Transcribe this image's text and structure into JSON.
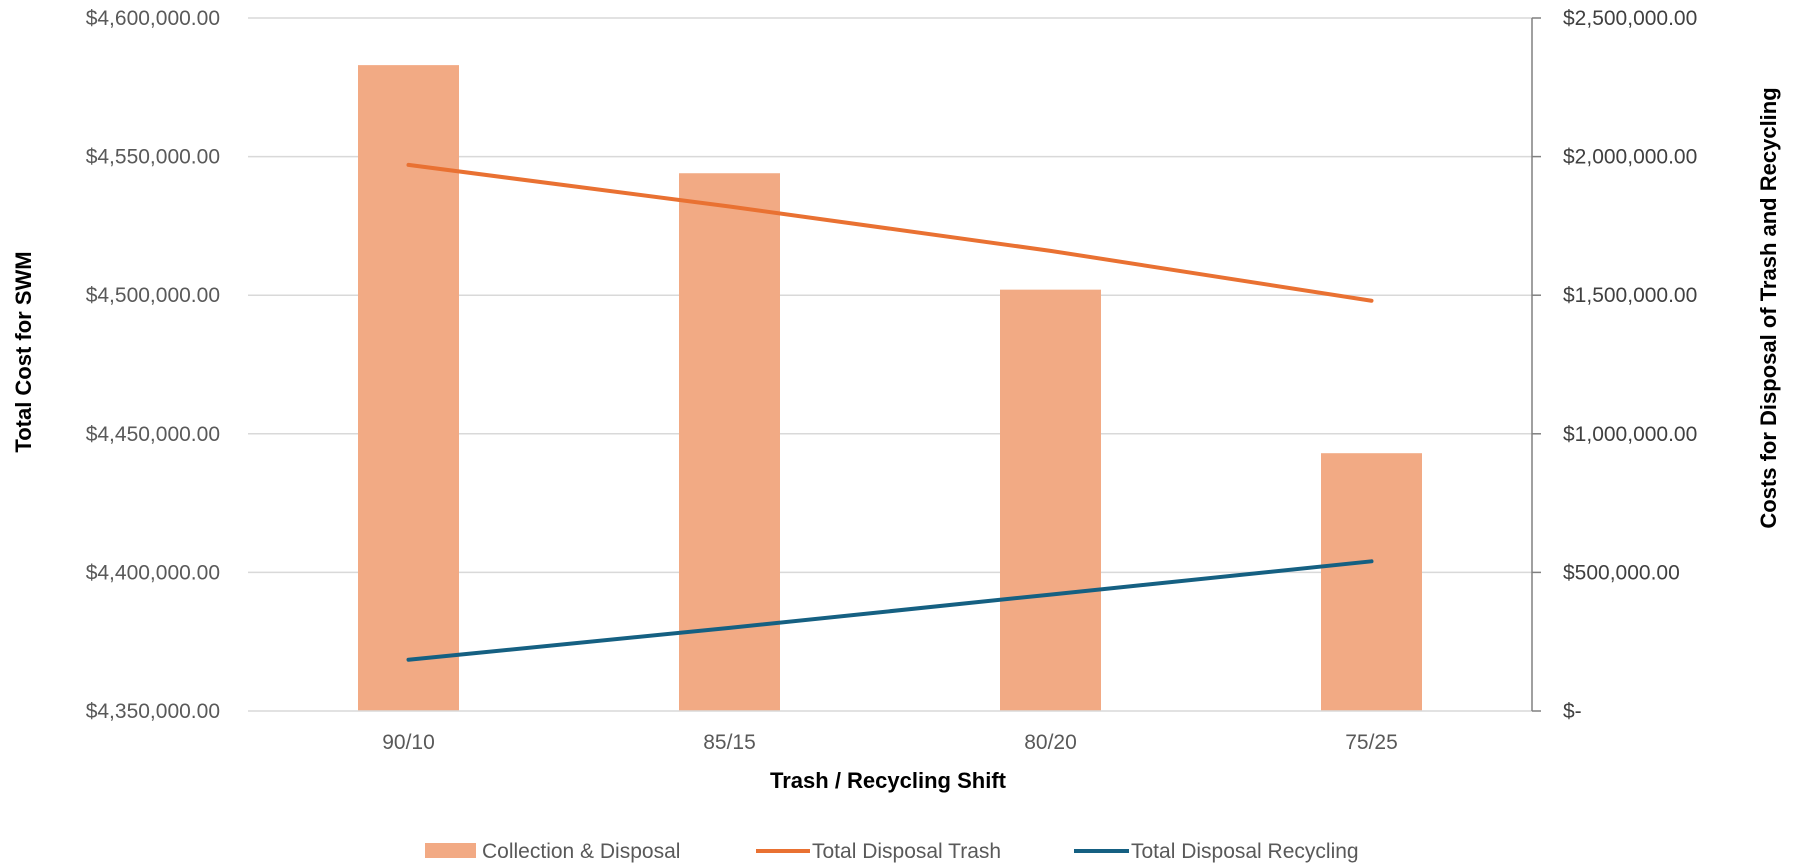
{
  "chart_data": {
    "type": "bar",
    "categories": [
      "90/10",
      "85/15",
      "80/20",
      "75/25"
    ],
    "xlabel": "Trash / Recycling Shift",
    "ylabel_left": "Total Cost for SWM",
    "ylabel_right": "Costs for Disposal of Trash and Recycling",
    "ylim_left": [
      4350000,
      4600000
    ],
    "ylim_right": [
      0,
      2500000
    ],
    "yticks_left": [
      "$4,350,000.00",
      "$4,400,000.00",
      "$4,450,000.00",
      "$4,500,000.00",
      "$4,550,000.00",
      "$4,600,000.00"
    ],
    "yticks_right": [
      "$-",
      "$500,000.00",
      "$1,000,000.00",
      "$1,500,000.00",
      "$2,000,000.00",
      "$2,500,000.00"
    ],
    "grid": true,
    "legend_position": "bottom",
    "series": [
      {
        "name": "Collection & Disposal",
        "type": "bar",
        "axis": "left",
        "color": "#F2AA84",
        "values": [
          4583000,
          4544000,
          4502000,
          4443000
        ]
      },
      {
        "name": "Total Disposal Trash",
        "type": "line",
        "axis": "right",
        "color": "#E97132",
        "values": [
          1970000,
          1820000,
          1660000,
          1480000
        ]
      },
      {
        "name": "Total Disposal Recycling",
        "type": "line",
        "axis": "right",
        "color": "#156082",
        "values": [
          185000,
          300000,
          420000,
          540000
        ]
      }
    ]
  }
}
